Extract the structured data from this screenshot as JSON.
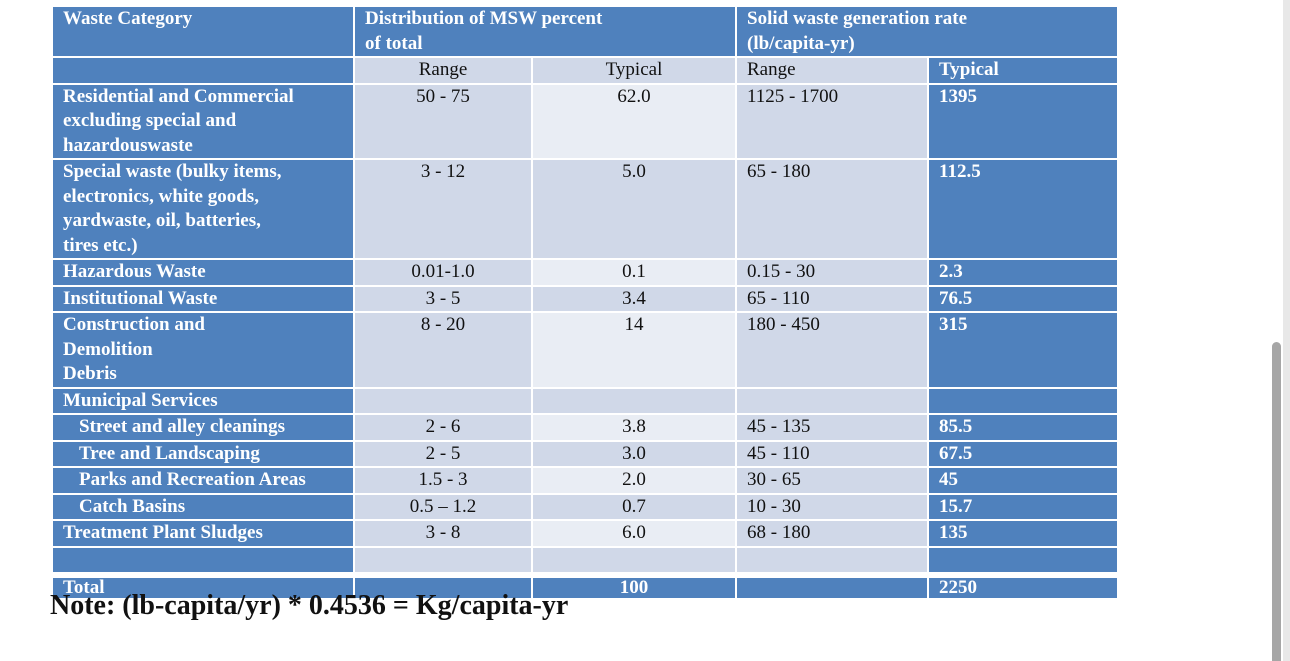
{
  "table": {
    "header": {
      "category": "Waste Category",
      "distribution": "Distribution of MSW percent",
      "distribution_line2": "of total",
      "generation": "Solid waste generation rate",
      "generation_line2": "(lb/capita-yr)"
    },
    "subheader": {
      "dist_range": "Range",
      "dist_typical": "Typical",
      "gen_range": "Range",
      "gen_typical": "Typical"
    },
    "rows": [
      {
        "category": [
          "Residential and Commercial",
          "excluding special and",
          "hazardouswaste"
        ],
        "dist_range": "50 - 75",
        "dist_typical": "62.0",
        "gen_range": "1125 - 1700",
        "gen_typical": "1395"
      },
      {
        "category": [
          "Special waste (bulky items,",
          "electronics, white goods,",
          "yardwaste, oil, batteries,",
          "tires etc.)"
        ],
        "dist_range": "3 - 12",
        "dist_typical": "5.0",
        "gen_range": "65 - 180",
        "gen_typical": "112.5"
      },
      {
        "category": [
          "Hazardous Waste"
        ],
        "dist_range": "0.01-1.0",
        "dist_typical": "0.1",
        "gen_range": "0.15 - 30",
        "gen_typical": "2.3"
      },
      {
        "category": [
          "Institutional Waste"
        ],
        "dist_range": "3 - 5",
        "dist_typical": "3.4",
        "gen_range": "65 - 110",
        "gen_typical": "76.5"
      },
      {
        "category": [
          "Construction and",
          "Demolition",
          "Debris"
        ],
        "dist_range": "8 - 20",
        "dist_typical": "14",
        "gen_range": "180 - 450",
        "gen_typical": "315"
      },
      {
        "category": [
          "Municipal Services"
        ],
        "dist_range": "",
        "dist_typical": "",
        "gen_range": "",
        "gen_typical": ""
      },
      {
        "category": [
          "Street and alley cleanings"
        ],
        "indent": true,
        "dist_range": "2 - 6",
        "dist_typical": "3.8",
        "gen_range": "45 - 135",
        "gen_typical": "85.5"
      },
      {
        "category": [
          "Tree and Landscaping"
        ],
        "indent": true,
        "dist_range": "2 - 5",
        "dist_typical": "3.0",
        "gen_range": "45 - 110",
        "gen_typical": "67.5"
      },
      {
        "category": [
          "Parks and Recreation Areas"
        ],
        "indent": true,
        "dist_range": "1.5 - 3",
        "dist_typical": "2.0",
        "gen_range": "30 - 65",
        "gen_typical": "45"
      },
      {
        "category": [
          "Catch Basins"
        ],
        "indent": true,
        "dist_range": "0.5 – 1.2",
        "dist_typical": "0.7",
        "gen_range": "10 - 30",
        "gen_typical": "15.7"
      },
      {
        "category": [
          "Treatment Plant Sludges"
        ],
        "dist_range": "3 - 8",
        "dist_typical": "6.0",
        "gen_range": "68 - 180",
        "gen_typical": "135"
      },
      {
        "category": [
          ""
        ],
        "dist_range": "",
        "dist_typical": "",
        "gen_range": "",
        "gen_typical": ""
      }
    ],
    "total": {
      "label": "Total",
      "dist_range": "",
      "dist_typical": "100",
      "gen_range": "",
      "gen_typical": "2250"
    }
  },
  "note": "Note: (lb-capita/yr) * 0.4536 = Kg/capita-yr",
  "colors": {
    "header_blue": "#4f81bd",
    "cell_dark": "#d0d8e8",
    "cell_light": "#e9edf4",
    "scrollbar_thumb": "#a6a6a6"
  }
}
